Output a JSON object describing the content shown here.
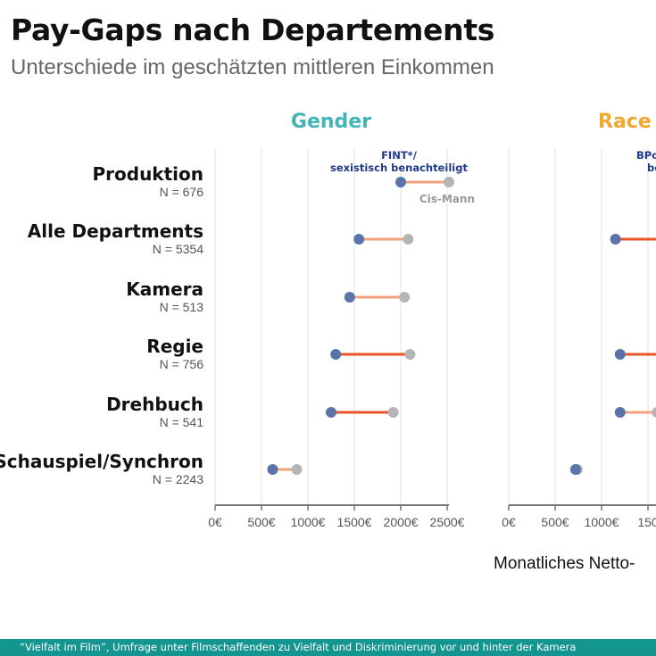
{
  "header": {
    "title": "Pay-Gaps nach Departements",
    "subtitle": "Unterschiede im geschätzten mittleren Einkommen"
  },
  "footer": {
    "source": "“Vielfalt im Film”, Umfrage unter Filmschaffenden zu Vielfalt und Diskriminierung vor und hinter der Kamera"
  },
  "colors": {
    "gender_title": "#43b5b5",
    "race_title": "#f0a830",
    "disadvantaged_point": "#5b74a8",
    "reference_point": "#b5b5b5",
    "gap_small": "#f5a07c",
    "gap_large": "#e8532a",
    "disadvantaged_label": "#1f3a8a",
    "reference_label": "#999999"
  },
  "chart_data": {
    "type": "dumbbell",
    "xlabel": "Monatliches Netto-",
    "xlim": [
      0,
      2500
    ],
    "x_ticks": [
      "0€",
      "500€",
      "1000€",
      "1500€",
      "2000€",
      "2500€"
    ],
    "grid": true,
    "categories": [
      {
        "label": "Produktion",
        "n": "N = 676"
      },
      {
        "label": "Alle Departments",
        "n": "N = 5354"
      },
      {
        "label": "Kamera",
        "n": "N = 513"
      },
      {
        "label": "Regie",
        "n": "N = 756"
      },
      {
        "label": "Drehbuch",
        "n": "N = 541"
      },
      {
        "label": "Schauspiel/Synchron",
        "n": "N = 2243"
      }
    ],
    "panels": [
      {
        "title": "Gender",
        "annotation_disadvantaged": [
          "FINT*/",
          "sexistisch benachteiligt"
        ],
        "annotation_reference": "Cis-Mann",
        "disadvantaged": [
          2000,
          1550,
          1450,
          1300,
          1250,
          620
        ],
        "reference": [
          2520,
          2080,
          2040,
          2100,
          1920,
          880
        ]
      },
      {
        "title": "Race",
        "annotation_disadvantaged": [
          "BPo",
          "be"
        ],
        "x_ticks": [
          "0€",
          "500€",
          "1000€",
          "150"
        ],
        "disadvantaged": [
          null,
          1150,
          null,
          1200,
          1200,
          720
        ],
        "reference": [
          null,
          null,
          null,
          null,
          1600,
          740
        ]
      }
    ]
  }
}
